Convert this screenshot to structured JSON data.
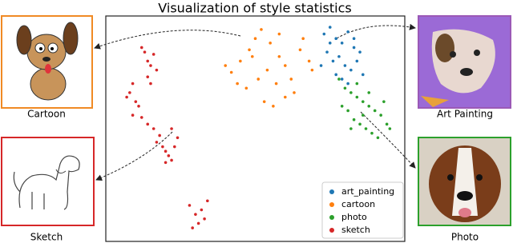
{
  "chart_data": {
    "type": "scatter",
    "title": "Visualization of style statistics",
    "xlim": [
      0,
      100
    ],
    "ylim": [
      0,
      100
    ],
    "legend": "lower right",
    "series": [
      {
        "name": "art_painting",
        "color": "#1f77b4",
        "x": [
          73,
          75,
          77,
          79,
          81,
          83,
          85,
          74,
          76,
          78,
          80,
          82,
          84,
          77,
          79,
          81,
          75,
          83,
          86,
          72
        ],
        "y": [
          92,
          95,
          90,
          88,
          93,
          86,
          84,
          84,
          80,
          82,
          78,
          76,
          80,
          74,
          72,
          70,
          88,
          90,
          74,
          78
        ]
      },
      {
        "name": "cartoon",
        "color": "#ff7f0e",
        "x": [
          40,
          42,
          45,
          48,
          50,
          52,
          55,
          58,
          60,
          62,
          65,
          68,
          44,
          47,
          51,
          54,
          57,
          60,
          63,
          56,
          53,
          49,
          58,
          66,
          69
        ],
        "y": [
          78,
          75,
          80,
          85,
          90,
          94,
          88,
          82,
          78,
          72,
          85,
          80,
          70,
          68,
          72,
          76,
          70,
          64,
          66,
          60,
          62,
          82,
          92,
          90,
          76
        ]
      },
      {
        "name": "photo",
        "color": "#2ca02c",
        "x": [
          78,
          80,
          82,
          84,
          86,
          88,
          90,
          92,
          94,
          79,
          81,
          83,
          85,
          87,
          89,
          91,
          84,
          86,
          88,
          82,
          93,
          95
        ],
        "y": [
          72,
          68,
          66,
          64,
          62,
          60,
          58,
          56,
          52,
          60,
          58,
          54,
          52,
          50,
          48,
          46,
          70,
          56,
          66,
          50,
          62,
          50
        ]
      },
      {
        "name": "sketch",
        "color": "#d62728",
        "x": [
          13,
          14,
          15,
          16,
          17,
          14,
          15,
          12,
          9,
          8,
          10,
          11,
          7,
          9,
          12,
          14,
          16,
          18,
          17,
          19,
          20,
          21,
          22,
          24,
          23,
          20,
          22,
          28,
          30,
          32,
          31,
          29,
          33,
          34
        ],
        "y": [
          84,
          80,
          78,
          83,
          76,
          73,
          70,
          86,
          70,
          66,
          62,
          60,
          64,
          56,
          55,
          52,
          50,
          47,
          44,
          42,
          40,
          38,
          36,
          46,
          42,
          35,
          50,
          16,
          12,
          14,
          8,
          6,
          10,
          18
        ]
      }
    ]
  },
  "side_images": [
    {
      "label": "Cartoon"
    },
    {
      "label": "Art Painting"
    },
    {
      "label": "Sketch"
    },
    {
      "label": "Photo"
    }
  ]
}
